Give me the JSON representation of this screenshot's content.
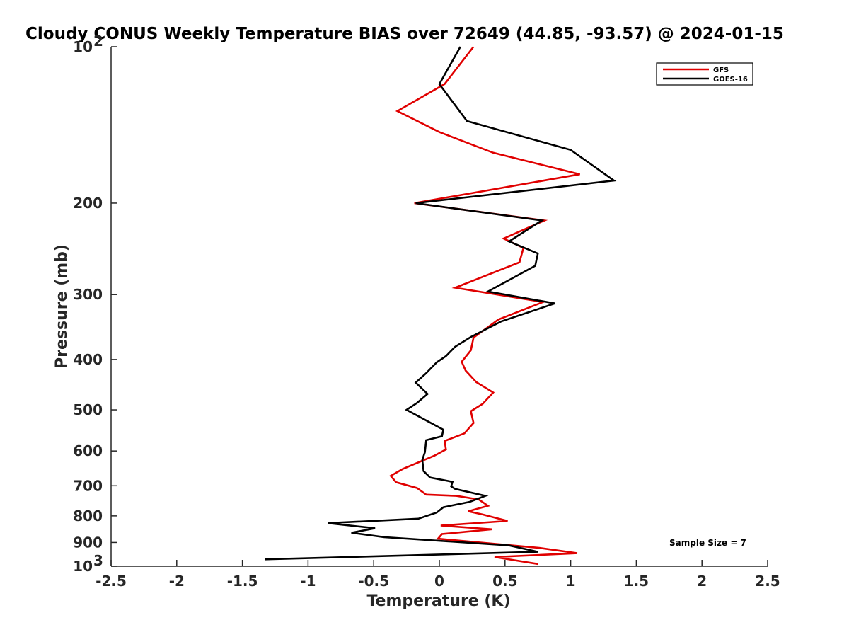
{
  "chart_data": {
    "type": "line",
    "title": "Cloudy CONUS Weekly Temperature BIAS over 72649 (44.85, -93.57) @ 2024-01-15",
    "xlabel": "Temperature (K)",
    "ylabel": "Pressure (mb)",
    "xlim": [
      -2.5,
      2.5
    ],
    "ylim": [
      1000,
      100
    ],
    "y_scale": "log",
    "y_reversed": true,
    "grid": false,
    "legend_position": "top-right",
    "x_ticks": [
      "-2.5",
      "-2",
      "-1.5",
      "-1",
      "-0.5",
      "0",
      "0.5",
      "1",
      "1.5",
      "2",
      "2.5"
    ],
    "y_ticks": [
      {
        "value": 100,
        "base": "10",
        "exp": "2"
      },
      {
        "value": 200,
        "label": "200"
      },
      {
        "value": 300,
        "label": "300"
      },
      {
        "value": 400,
        "label": "400"
      },
      {
        "value": 500,
        "label": "500"
      },
      {
        "value": 600,
        "label": "600"
      },
      {
        "value": 700,
        "label": "700"
      },
      {
        "value": 800,
        "label": "800"
      },
      {
        "value": 900,
        "label": "900"
      },
      {
        "value": 1000,
        "base": "10",
        "exp": "3"
      }
    ],
    "annotation": "Sample Size = 7",
    "series": [
      {
        "name": "GFS",
        "color": "#e00000",
        "points": [
          [
            0.26,
            100
          ],
          [
            0.04,
            118
          ],
          [
            -0.32,
            133
          ],
          [
            0.0,
            146
          ],
          [
            0.41,
            160
          ],
          [
            1.07,
            176
          ],
          [
            -0.19,
            200
          ],
          [
            0.8,
            216
          ],
          [
            0.49,
            234
          ],
          [
            0.64,
            244
          ],
          [
            0.61,
            260
          ],
          [
            0.12,
            291
          ],
          [
            0.79,
            310
          ],
          [
            0.45,
            335
          ],
          [
            0.26,
            363
          ],
          [
            0.24,
            384
          ],
          [
            0.17,
            404
          ],
          [
            0.2,
            420
          ],
          [
            0.28,
            442
          ],
          [
            0.41,
            463
          ],
          [
            0.33,
            487
          ],
          [
            0.24,
            503
          ],
          [
            0.26,
            530
          ],
          [
            0.19,
            555
          ],
          [
            0.04,
            574
          ],
          [
            0.05,
            596
          ],
          [
            -0.04,
            613
          ],
          [
            -0.28,
            650
          ],
          [
            -0.37,
            670
          ],
          [
            -0.33,
            689
          ],
          [
            -0.17,
            707
          ],
          [
            -0.1,
            728
          ],
          [
            0.13,
            732
          ],
          [
            0.3,
            744
          ],
          [
            0.37,
            765
          ],
          [
            0.22,
            784
          ],
          [
            0.33,
            795
          ],
          [
            0.52,
            818
          ],
          [
            0.01,
            835
          ],
          [
            0.4,
            849
          ],
          [
            0.02,
            867
          ],
          [
            -0.01,
            885
          ],
          [
            0.76,
            922
          ],
          [
            1.05,
            944
          ],
          [
            0.42,
            960
          ],
          [
            0.75,
            990
          ]
        ]
      },
      {
        "name": "GOES-16",
        "color": "#000000",
        "points": [
          [
            0.16,
            100
          ],
          [
            0.0,
            118
          ],
          [
            0.21,
            139
          ],
          [
            1.0,
            158
          ],
          [
            1.33,
            181
          ],
          [
            -0.18,
            200
          ],
          [
            0.78,
            216
          ],
          [
            0.53,
            237
          ],
          [
            0.75,
            250
          ],
          [
            0.73,
            264
          ],
          [
            0.37,
            296
          ],
          [
            0.88,
            312
          ],
          [
            0.47,
            338
          ],
          [
            0.24,
            362
          ],
          [
            0.12,
            378
          ],
          [
            0.05,
            394
          ],
          [
            -0.02,
            405
          ],
          [
            -0.1,
            425
          ],
          [
            -0.18,
            443
          ],
          [
            -0.09,
            466
          ],
          [
            -0.17,
            485
          ],
          [
            -0.25,
            500
          ],
          [
            0.03,
            546
          ],
          [
            0.02,
            562
          ],
          [
            -0.1,
            572
          ],
          [
            -0.11,
            603
          ],
          [
            -0.13,
            624
          ],
          [
            -0.12,
            656
          ],
          [
            -0.07,
            675
          ],
          [
            0.1,
            688
          ],
          [
            0.09,
            702
          ],
          [
            0.12,
            710
          ],
          [
            0.35,
            732
          ],
          [
            0.23,
            752
          ],
          [
            0.03,
            770
          ],
          [
            -0.02,
            788
          ],
          [
            -0.16,
            810
          ],
          [
            -0.85,
            826
          ],
          [
            -0.49,
            845
          ],
          [
            -0.67,
            862
          ],
          [
            -0.42,
            879
          ],
          [
            0.53,
            912
          ],
          [
            0.75,
            938
          ],
          [
            -1.33,
            970
          ]
        ]
      }
    ]
  }
}
